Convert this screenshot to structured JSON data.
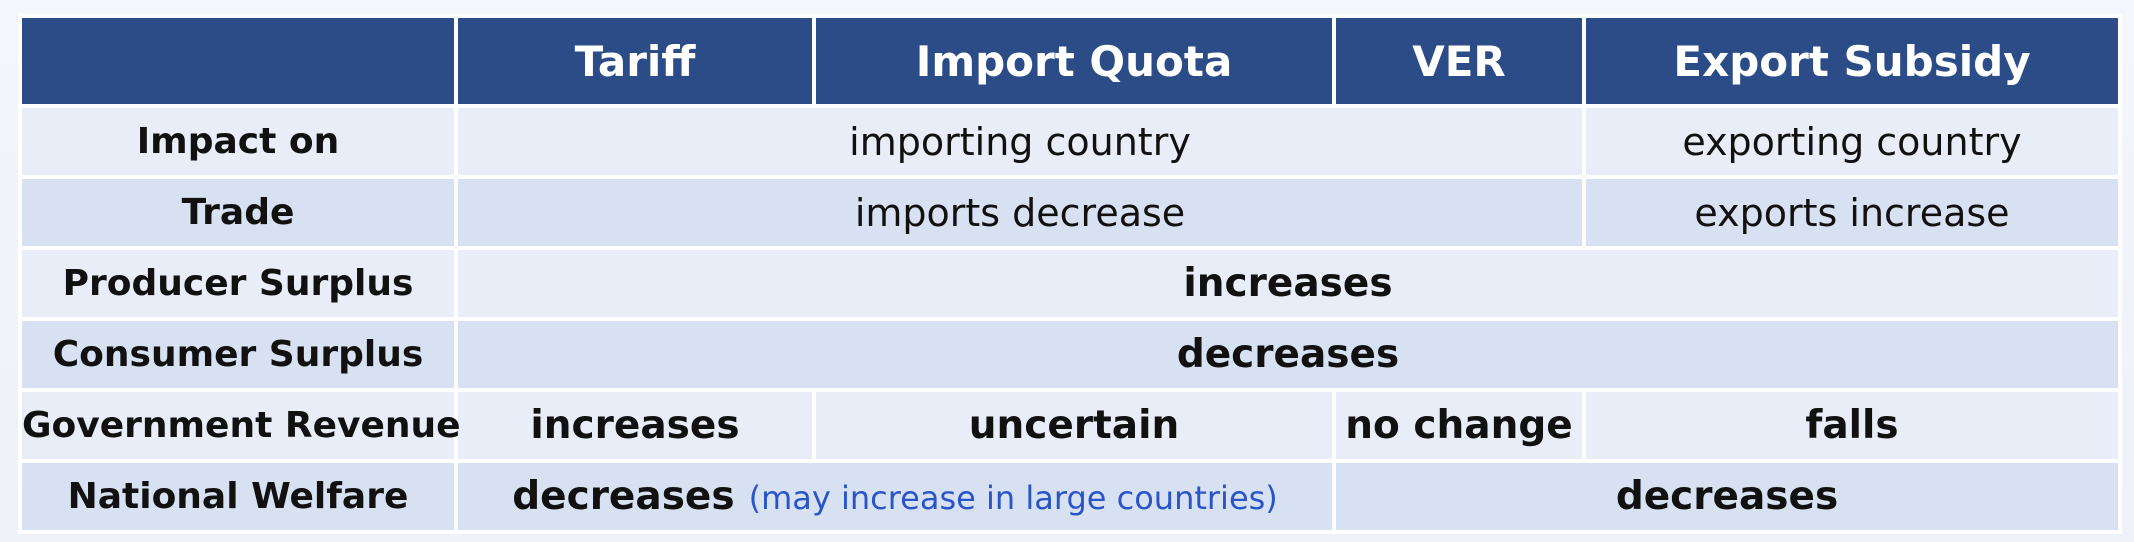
{
  "header": {
    "corner": "",
    "columns": [
      "Tariff",
      "Import Quota",
      "VER",
      "Export Subsidy"
    ]
  },
  "rows": {
    "impact": {
      "label": "Impact on",
      "importing": "importing country",
      "exporting": "exporting country"
    },
    "trade": {
      "label": "Trade",
      "importing": "imports decrease",
      "exporting": "exports increase"
    },
    "producer_surplus": {
      "label": "Producer Surplus",
      "all": "increases"
    },
    "consumer_surplus": {
      "label": "Consumer Surplus",
      "all": "decreases"
    },
    "government_revenue": {
      "label": "Government Revenue",
      "tariff": "increases",
      "import_quota": "uncertain",
      "ver": "no change",
      "export_subsidy": "falls"
    },
    "national_welfare": {
      "label": "National Welfare",
      "tariff_quota": "decreases",
      "tariff_quota_note": "(may increase in large countries)",
      "ver_subsidy": "decreases"
    }
  },
  "colors": {
    "header_bg": "#2b4c86",
    "row_light": "#e9edf7",
    "row_dark": "#d8e1f2",
    "note_text": "#2a55c8"
  }
}
